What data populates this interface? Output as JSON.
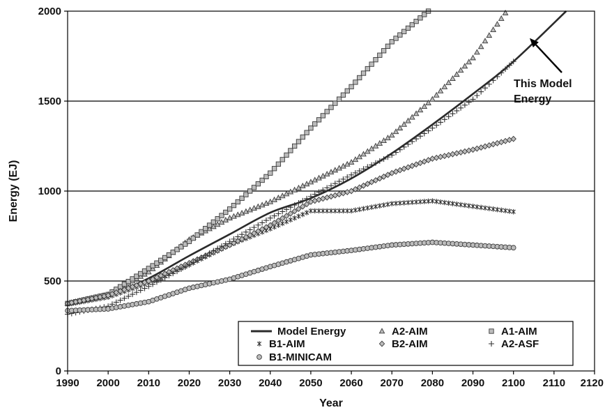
{
  "chart_data": {
    "type": "line",
    "title": "",
    "xlabel": "Year",
    "ylabel": "Energy (EJ)",
    "xlim": [
      1990,
      2120
    ],
    "ylim": [
      0,
      2000
    ],
    "xticks": [
      1990,
      2000,
      2010,
      2020,
      2030,
      2040,
      2050,
      2060,
      2070,
      2080,
      2090,
      2100,
      2110,
      2120
    ],
    "yticks": [
      0,
      500,
      1000,
      1500,
      2000
    ],
    "grid": "horizontal",
    "legend_position": "bottom-right",
    "colors": {
      "line": "#2b2b2b",
      "marker_fill": "#bcbcbc",
      "marker_stroke": "#3a3a3a",
      "grid": "#000000"
    },
    "annotation": {
      "lines": [
        "This Model",
        "Energy"
      ],
      "points_to": [
        2104,
        1850
      ]
    },
    "series": [
      {
        "name": "Model Energy",
        "marker": "line",
        "legend_col": 0,
        "legend_row": 0,
        "x": [
          1990,
          2000,
          2010,
          2020,
          2030,
          2040,
          2050,
          2060,
          2070,
          2080,
          2090,
          2100,
          2113
        ],
        "y": [
          365,
          420,
          515,
          640,
          760,
          880,
          960,
          1070,
          1210,
          1370,
          1540,
          1720,
          2000
        ]
      },
      {
        "name": "A2-AIM",
        "marker": "triangle",
        "legend_col": 1,
        "legend_row": 0,
        "x": [
          1990,
          2000,
          2010,
          2020,
          2030,
          2040,
          2050,
          2060,
          2070,
          2080,
          2090,
          2098
        ],
        "y": [
          375,
          425,
          550,
          730,
          850,
          940,
          1050,
          1160,
          1310,
          1510,
          1740,
          1990
        ]
      },
      {
        "name": "A1-AIM",
        "marker": "square",
        "legend_col": 2,
        "legend_row": 0,
        "x": [
          1990,
          2000,
          2010,
          2020,
          2030,
          2040,
          2050,
          2060,
          2070,
          2079
        ],
        "y": [
          375,
          425,
          570,
          720,
          900,
          1100,
          1350,
          1580,
          1830,
          2000
        ]
      },
      {
        "name": "B1-AIM",
        "marker": "asterisk",
        "legend_col": 0,
        "legend_row": 1,
        "x": [
          1990,
          2000,
          2010,
          2020,
          2030,
          2040,
          2050,
          2060,
          2070,
          2080,
          2090,
          2100
        ],
        "y": [
          370,
          410,
          490,
          590,
          700,
          790,
          890,
          890,
          930,
          945,
          915,
          885
        ]
      },
      {
        "name": "B2-AIM",
        "marker": "diamond",
        "legend_col": 1,
        "legend_row": 1,
        "x": [
          1990,
          2000,
          2010,
          2020,
          2030,
          2040,
          2050,
          2060,
          2070,
          2080,
          2090,
          2100
        ],
        "y": [
          375,
          420,
          500,
          600,
          700,
          810,
          940,
          1000,
          1100,
          1180,
          1230,
          1290
        ]
      },
      {
        "name": "A2-ASF",
        "marker": "plus",
        "legend_col": 2,
        "legend_row": 1,
        "x": [
          1990,
          2000,
          2010,
          2020,
          2030,
          2040,
          2050,
          2060,
          2070,
          2080,
          2090,
          2100
        ],
        "y": [
          315,
          360,
          470,
          590,
          720,
          850,
          970,
          1090,
          1200,
          1350,
          1510,
          1720
        ]
      },
      {
        "name": "B1-MINICAM",
        "marker": "circle",
        "legend_col": 0,
        "legend_row": 2,
        "x": [
          1990,
          2000,
          2010,
          2020,
          2030,
          2040,
          2050,
          2060,
          2070,
          2080,
          2090,
          2100
        ],
        "y": [
          335,
          345,
          385,
          460,
          510,
          580,
          645,
          670,
          700,
          715,
          700,
          685
        ]
      }
    ]
  }
}
